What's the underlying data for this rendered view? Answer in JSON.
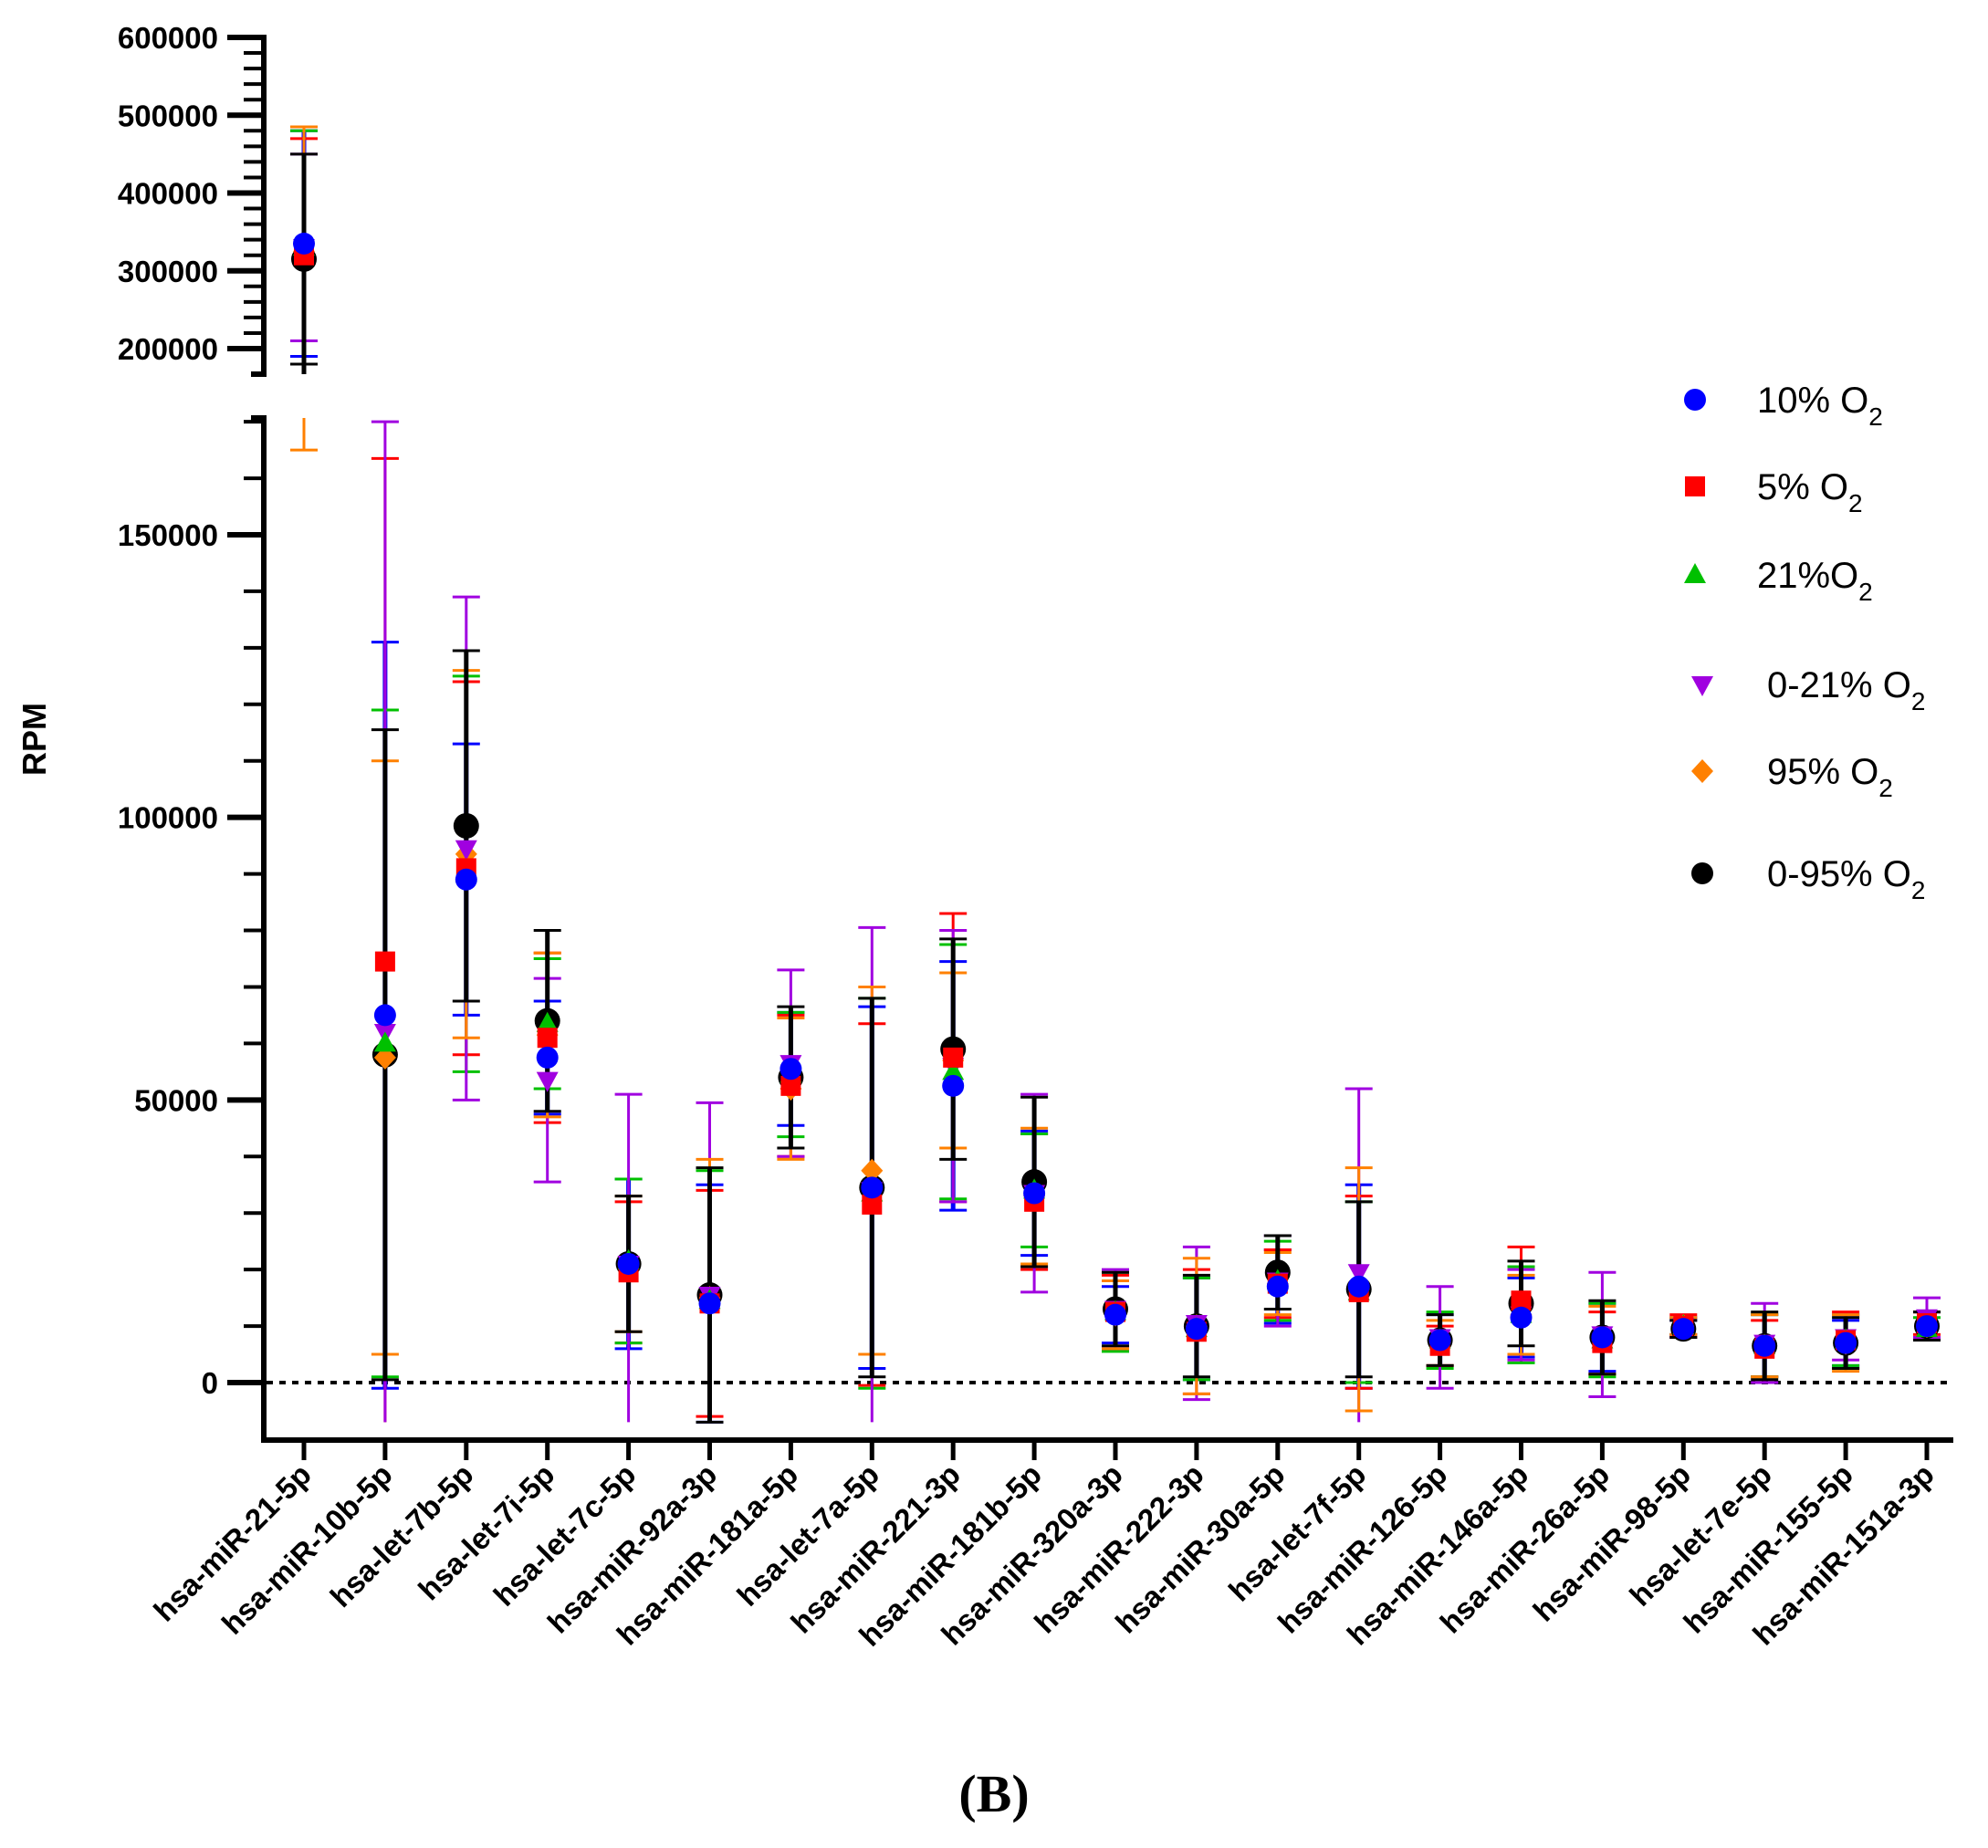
{
  "chart_data": {
    "type": "scatter",
    "title": "",
    "panel_label": "(B)",
    "ylabel": "RPM",
    "xlabel": "",
    "grid": false,
    "legend_position": "right",
    "y_segments": [
      {
        "name": "upper",
        "ylim": [
          180000,
          600000
        ],
        "ticks": [
          600000,
          500000,
          400000,
          300000,
          200000
        ]
      },
      {
        "name": "lower",
        "ylim": [
          -7000,
          170000
        ],
        "ticks": [
          150000,
          100000,
          50000,
          0
        ]
      }
    ],
    "reference_line": {
      "y": 0,
      "style": "dotted"
    },
    "categories": [
      "hsa-miR-21-5p",
      "hsa-miR-10b-5p",
      "hsa-let-7b-5p",
      "hsa-let-7i-5p",
      "hsa-let-7c-5p",
      "hsa-miR-92a-3p",
      "hsa-miR-181a-5p",
      "hsa-let-7a-5p",
      "hsa-miR-221-3p",
      "hsa-miR-181b-5p",
      "hsa-miR-320a-3p",
      "hsa-miR-222-3p",
      "hsa-miR-30a-5p",
      "hsa-let-7f-5p",
      "hsa-miR-126-5p",
      "hsa-miR-146a-5p",
      "hsa-miR-26a-5p",
      "hsa-miR-98-5p",
      "hsa-let-7e-5p",
      "hsa-miR-155-5p",
      "hsa-miR-151a-3p"
    ],
    "series": [
      {
        "name": "10% O2",
        "label_main": "10% O",
        "label_sub": "2",
        "color": "#0000ff",
        "marker": "circle",
        "values": [
          335000,
          65000,
          89000,
          57500,
          21000,
          14000,
          55500,
          34500,
          52500,
          33500,
          12000,
          9500,
          17000,
          17000,
          7500,
          11500,
          8000,
          9500,
          6500,
          7000,
          10000
        ],
        "err": [
          145000,
          66000,
          24000,
          10000,
          15000,
          21000,
          10000,
          32000,
          22000,
          11000,
          5000,
          9000,
          6500,
          18000,
          4500,
          7000,
          6000,
          1500,
          5500,
          4000,
          2500
        ]
      },
      {
        "name": "5% O2",
        "label_main": "5% O",
        "label_sub": "2",
        "color": "#ff0000",
        "marker": "square",
        "values": [
          320000,
          74500,
          91000,
          61000,
          19500,
          14000,
          52500,
          31500,
          57500,
          32000,
          12500,
          9000,
          17500,
          16000,
          6500,
          14500,
          7000,
          10000,
          6000,
          7500,
          10500
        ],
        "err": [
          150000,
          89000,
          33000,
          15000,
          12500,
          20000,
          12500,
          32000,
          25500,
          12000,
          6500,
          11000,
          6000,
          17000,
          3500,
          9500,
          5500,
          2000,
          5000,
          5000,
          2000
        ]
      },
      {
        "name": "21%O2",
        "label_main": "21%O",
        "label_sub": "2",
        "color": "#00c000",
        "marker": "triangle",
        "values": [
          330000,
          60000,
          90000,
          63500,
          21500,
          14500,
          54500,
          33500,
          55000,
          34000,
          12500,
          9500,
          18000,
          16000,
          7500,
          12000,
          7500,
          10000,
          6500,
          7500,
          9500
        ],
        "err": [
          150000,
          59000,
          35000,
          11500,
          14500,
          23000,
          11000,
          34500,
          22500,
          10000,
          7000,
          9000,
          7000,
          16000,
          5000,
          8500,
          6500,
          1500,
          5500,
          4500,
          2000
        ]
      },
      {
        "name": "0-21% O2",
        "label_main": "0-21% O",
        "label_sub": "2",
        "color": "#a000e0",
        "marker": "triangle-down",
        "values": [
          330000,
          62000,
          94500,
          53500,
          21000,
          15500,
          56500,
          34000,
          56000,
          33500,
          13000,
          10500,
          18000,
          19500,
          8000,
          12000,
          8500,
          10000,
          7000,
          8000,
          11500
        ],
        "err": [
          120000,
          108000,
          44500,
          18000,
          30000,
          34000,
          16500,
          46500,
          24000,
          17500,
          7000,
          13500,
          8000,
          32500,
          9000,
          8000,
          11000,
          1500,
          7000,
          4000,
          3500
        ]
      },
      {
        "name": "95% O2",
        "label_main": "95% O",
        "label_sub": "2",
        "color": "#ff8000",
        "marker": "diamond",
        "values": [
          325000,
          57500,
          93500,
          61500,
          21000,
          15000,
          52000,
          37500,
          57000,
          33000,
          12000,
          10000,
          17500,
          16500,
          7000,
          12000,
          7500,
          10000,
          6500,
          7000,
          10000
        ],
        "err": [
          160000,
          52500,
          32500,
          14500,
          12000,
          24500,
          12500,
          32500,
          15500,
          12000,
          6000,
          12000,
          5500,
          21500,
          4000,
          7000,
          6000,
          1500,
          5500,
          5000,
          2500
        ]
      },
      {
        "name": "0-95% O2",
        "label_main": "0-95% O",
        "label_sub": "2",
        "color": "#000000",
        "marker": "circle-large",
        "values": [
          315000,
          58000,
          98500,
          64000,
          21000,
          15500,
          54000,
          34500,
          59000,
          35500,
          13000,
          10000,
          19500,
          16500,
          7500,
          14000,
          8000,
          9500,
          6500,
          7000,
          10000
        ],
        "err": [
          135000,
          57500,
          31000,
          16000,
          12000,
          22500,
          12500,
          33500,
          19500,
          15000,
          6500,
          9000,
          6500,
          15500,
          4500,
          7500,
          6500,
          1500,
          6000,
          4500,
          2500
        ]
      }
    ]
  }
}
